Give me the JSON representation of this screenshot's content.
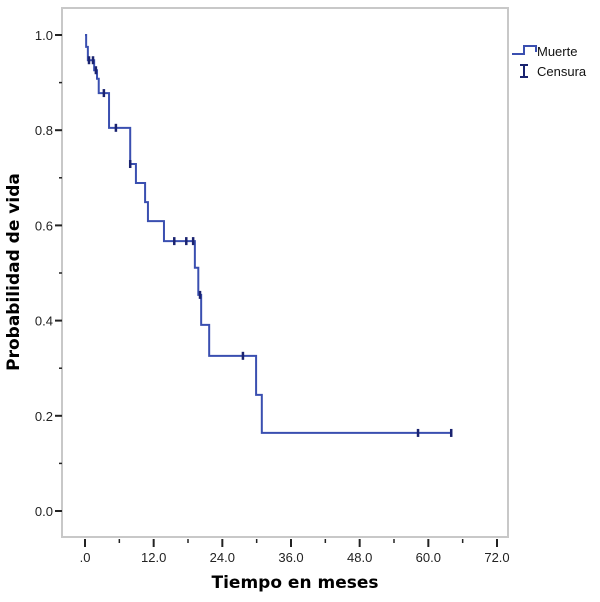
{
  "chart_data": {
    "type": "line",
    "subtype": "kaplan-meier-step",
    "title": "",
    "xlabel": "Tiempo en meses",
    "ylabel": "Probabilidad de vida",
    "xlim": [
      0,
      72
    ],
    "ylim": [
      0,
      1
    ],
    "x_ticks": [
      0,
      12,
      24,
      36,
      48,
      60,
      72
    ],
    "x_tick_labels": [
      ".0",
      "12.0",
      "24.0",
      "36.0",
      "48.0",
      "60.0",
      "72.0"
    ],
    "x_minor_ticks": [
      6,
      18,
      30,
      42,
      54,
      66
    ],
    "y_ticks": [
      0,
      0.2,
      0.4,
      0.6,
      0.8,
      1.0
    ],
    "y_tick_labels": [
      "0.0",
      "0.2",
      "0.4",
      "0.6",
      "0.8",
      "1.0"
    ],
    "y_minor_ticks": [
      0.1,
      0.3,
      0.5,
      0.7,
      0.9
    ],
    "grid": false,
    "legend": {
      "position": "top-right",
      "entries": [
        {
          "label": "Muerte",
          "symbol": "step-line"
        },
        {
          "label": "Censura",
          "symbol": "censor-tick"
        }
      ]
    },
    "colors": {
      "line": "#3a4fb0",
      "censor": "#1a2370",
      "frame": "#c8c8c8"
    },
    "series": [
      {
        "name": "Muerte",
        "steps": [
          {
            "t": 0.0,
            "s": 1.0
          },
          {
            "t": 0.2,
            "s": 0.975
          },
          {
            "t": 0.5,
            "s": 0.947
          },
          {
            "t": 1.6,
            "s": 0.926
          },
          {
            "t": 2.1,
            "s": 0.908
          },
          {
            "t": 2.4,
            "s": 0.878
          },
          {
            "t": 4.2,
            "s": 0.805
          },
          {
            "t": 7.9,
            "s": 0.729
          },
          {
            "t": 8.9,
            "s": 0.689
          },
          {
            "t": 10.5,
            "s": 0.649
          },
          {
            "t": 11.0,
            "s": 0.609
          },
          {
            "t": 13.8,
            "s": 0.567
          },
          {
            "t": 19.2,
            "s": 0.511
          },
          {
            "t": 19.8,
            "s": 0.454
          },
          {
            "t": 20.3,
            "s": 0.391
          },
          {
            "t": 21.7,
            "s": 0.326
          },
          {
            "t": 29.9,
            "s": 0.244
          },
          {
            "t": 30.9,
            "s": 0.164
          }
        ],
        "end_t": 64.0
      }
    ],
    "censored": [
      {
        "t": 0.7,
        "s": 0.947
      },
      {
        "t": 1.4,
        "s": 0.947
      },
      {
        "t": 1.9,
        "s": 0.926
      },
      {
        "t": 3.3,
        "s": 0.878
      },
      {
        "t": 5.4,
        "s": 0.805
      },
      {
        "t": 7.9,
        "s": 0.729
      },
      {
        "t": 15.6,
        "s": 0.567
      },
      {
        "t": 17.7,
        "s": 0.567
      },
      {
        "t": 18.9,
        "s": 0.567
      },
      {
        "t": 20.1,
        "s": 0.454
      },
      {
        "t": 27.6,
        "s": 0.326
      },
      {
        "t": 58.2,
        "s": 0.164
      },
      {
        "t": 64.0,
        "s": 0.164
      }
    ]
  }
}
